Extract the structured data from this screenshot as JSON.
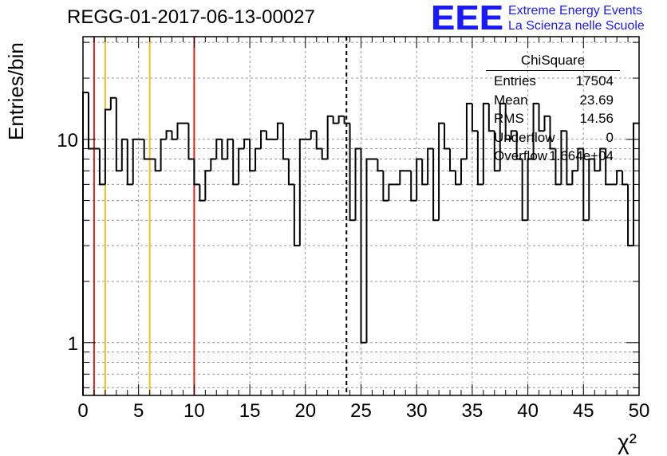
{
  "header": {
    "run_title": "REGG-01-2017-06-13-00027"
  },
  "logo": {
    "mark": "EEE",
    "line1": "Extreme Energy Events",
    "line2": "La Scienza nelle Scuole",
    "color": "#1a1aff"
  },
  "stats": {
    "title": "ChiSquare",
    "rows": [
      {
        "key": "Entries",
        "value": "17504"
      },
      {
        "key": "Mean",
        "value": "23.69"
      },
      {
        "key": "RMS",
        "value": "14.56"
      },
      {
        "key": "Underflow",
        "value": "0"
      },
      {
        "key": "Overflow",
        "value": "1.664e+04"
      }
    ]
  },
  "chart_data": {
    "type": "histogram",
    "xlabel": "χ²",
    "ylabel": "Entries/bin",
    "xlim": [
      0,
      50
    ],
    "ylim": [
      0.55,
      32
    ],
    "y_scale": "log",
    "grid": true,
    "bin_width": 0.5,
    "x_ticks": [
      "0",
      "5",
      "10",
      "15",
      "20",
      "25",
      "30",
      "35",
      "40",
      "45",
      "50"
    ],
    "y_ticks": [
      "1",
      "10"
    ],
    "values": [
      17,
      9,
      9,
      6,
      14,
      16,
      7,
      10,
      6,
      10,
      10,
      8,
      8,
      7,
      10,
      11,
      10,
      12,
      12,
      8,
      6,
      5,
      7,
      8,
      10,
      8,
      10,
      6,
      9,
      10,
      7,
      9,
      11,
      10,
      10,
      12,
      8,
      6,
      3,
      10,
      10,
      11,
      9,
      8,
      13,
      12,
      13,
      12,
      4,
      9,
      1,
      8,
      8,
      7,
      5,
      6,
      6,
      7,
      7,
      5,
      8,
      6,
      9,
      4,
      12,
      9,
      7,
      6,
      8,
      15,
      11,
      6,
      15,
      11,
      7,
      15,
      10,
      11,
      8,
      4,
      8,
      15,
      11,
      13,
      9,
      6,
      11,
      6,
      7,
      9,
      4,
      8,
      7,
      9,
      6,
      6,
      7,
      6,
      3,
      12
    ],
    "lines": [
      {
        "x": 1,
        "color": "#e02020",
        "style": "solid"
      },
      {
        "x": 2,
        "color": "#f0c020",
        "style": "solid"
      },
      {
        "x": 6,
        "color": "#f0c020",
        "style": "solid"
      },
      {
        "x": 10,
        "color": "#e02020",
        "style": "solid"
      },
      {
        "x": 23.69,
        "color": "#000000",
        "style": "dashed"
      }
    ]
  }
}
